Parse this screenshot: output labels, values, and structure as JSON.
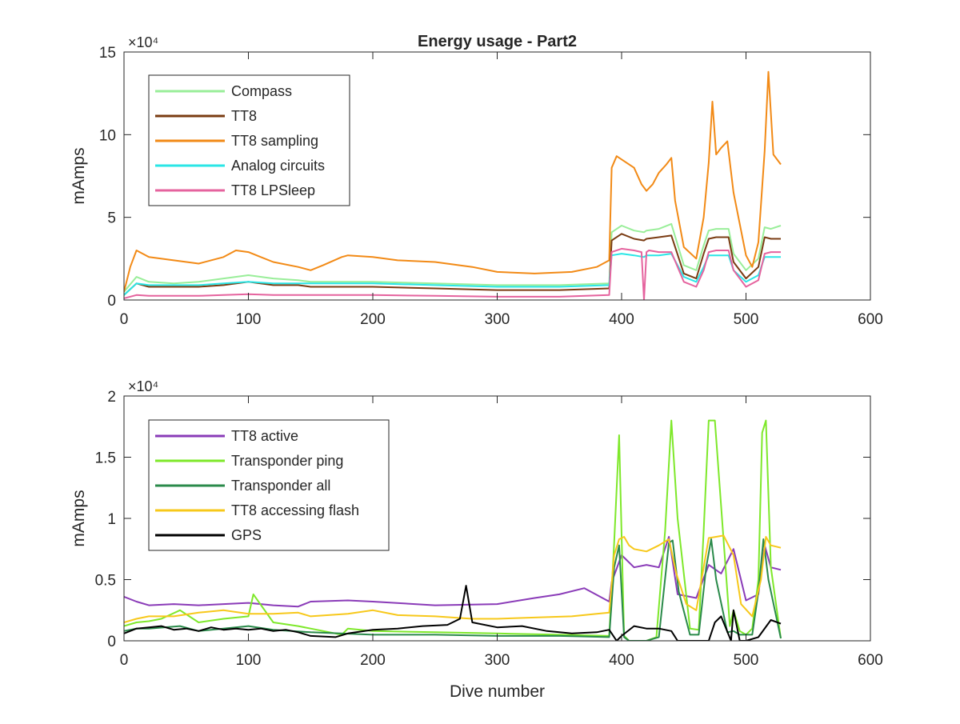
{
  "chart_data": [
    {
      "type": "line",
      "title": "Energy usage - Part2",
      "xlabel": "",
      "ylabel": "mAmps",
      "xlim": [
        0,
        600
      ],
      "ylim": [
        0,
        150000
      ],
      "xticks": [
        0,
        100,
        200,
        300,
        400,
        500,
        600
      ],
      "yticks": [
        0,
        50000,
        100000,
        150000
      ],
      "ytick_labels": [
        "0",
        "5",
        "10",
        "15"
      ],
      "y_exponent_label": "×10⁴",
      "grid": false,
      "legend_position": "top-left",
      "series": [
        {
          "name": "Compass",
          "color": "#99ee99",
          "x": [
            0,
            10,
            20,
            40,
            60,
            80,
            100,
            120,
            140,
            150,
            200,
            250,
            300,
            350,
            390,
            392,
            400,
            410,
            418,
            420,
            430,
            440,
            450,
            460,
            466,
            470,
            476,
            486,
            490,
            500,
            510,
            515,
            520,
            528
          ],
          "y": [
            5000,
            14000,
            11000,
            10000,
            11000,
            13000,
            15000,
            13000,
            12000,
            11000,
            11000,
            10000,
            9000,
            9000,
            10000,
            41000,
            45000,
            42000,
            41000,
            42000,
            43000,
            46000,
            21000,
            18000,
            33000,
            42000,
            43000,
            43000,
            28000,
            18000,
            25000,
            44000,
            43000,
            45000
          ]
        },
        {
          "name": "TT8",
          "color": "#7a3b12",
          "x": [
            0,
            10,
            20,
            40,
            60,
            80,
            100,
            120,
            140,
            150,
            200,
            250,
            300,
            350,
            390,
            392,
            400,
            410,
            418,
            420,
            430,
            440,
            450,
            460,
            466,
            470,
            476,
            486,
            490,
            500,
            510,
            515,
            520,
            528
          ],
          "y": [
            3000,
            10000,
            8000,
            8000,
            8000,
            9000,
            11000,
            9000,
            9000,
            8000,
            8000,
            7000,
            6000,
            6000,
            7000,
            36000,
            40000,
            37000,
            36000,
            37000,
            38000,
            39000,
            16000,
            13000,
            28000,
            37000,
            38000,
            38000,
            23000,
            13000,
            20000,
            38000,
            37000,
            37000
          ]
        },
        {
          "name": "TT8 sampling",
          "color": "#f28a16",
          "x": [
            0,
            5,
            10,
            20,
            40,
            60,
            80,
            90,
            100,
            110,
            120,
            140,
            150,
            160,
            175,
            180,
            200,
            220,
            250,
            280,
            300,
            330,
            360,
            380,
            390,
            392,
            396,
            400,
            410,
            416,
            420,
            425,
            430,
            436,
            440,
            443,
            450,
            460,
            466,
            470,
            473,
            476,
            480,
            485,
            490,
            500,
            505,
            510,
            515,
            518,
            522,
            528
          ],
          "y": [
            5000,
            20000,
            30000,
            26000,
            24000,
            22000,
            26000,
            30000,
            29000,
            26000,
            23000,
            20000,
            18000,
            21000,
            26000,
            27000,
            26000,
            24000,
            23000,
            20000,
            17000,
            16000,
            17000,
            20000,
            24000,
            80000,
            87000,
            85000,
            80000,
            70000,
            66000,
            70000,
            77000,
            82000,
            86000,
            60000,
            32000,
            25000,
            50000,
            83000,
            120000,
            88000,
            92000,
            96000,
            65000,
            27000,
            20000,
            35000,
            90000,
            138000,
            88000,
            82000
          ]
        },
        {
          "name": "Analog circuits",
          "color": "#2ae6e6",
          "x": [
            0,
            10,
            20,
            40,
            60,
            80,
            100,
            120,
            140,
            150,
            200,
            250,
            300,
            350,
            390,
            392,
            400,
            410,
            418,
            420,
            430,
            440,
            450,
            460,
            466,
            470,
            476,
            486,
            490,
            500,
            510,
            515,
            520,
            528
          ],
          "y": [
            3000,
            10000,
            9000,
            9000,
            9000,
            10000,
            11000,
            10000,
            10000,
            10000,
            10000,
            9000,
            8000,
            8000,
            9000,
            27000,
            28000,
            27000,
            26000,
            27000,
            27000,
            28000,
            14000,
            11000,
            20000,
            27000,
            27000,
            27000,
            18000,
            11000,
            15000,
            26000,
            26000,
            26000
          ]
        },
        {
          "name": "TT8 LPSleep",
          "color": "#e5639e",
          "x": [
            0,
            10,
            20,
            40,
            60,
            80,
            100,
            120,
            140,
            150,
            200,
            250,
            300,
            350,
            390,
            392,
            400,
            410,
            416,
            418,
            420,
            422,
            430,
            440,
            450,
            460,
            466,
            470,
            476,
            486,
            490,
            500,
            510,
            515,
            520,
            528
          ],
          "y": [
            1000,
            3000,
            2500,
            2500,
            2500,
            3000,
            3500,
            3000,
            3000,
            3000,
            3000,
            2500,
            2000,
            2000,
            3000,
            29000,
            31000,
            30000,
            29000,
            0,
            29000,
            30000,
            29000,
            29000,
            11000,
            8000,
            18000,
            29000,
            30000,
            30000,
            18000,
            8000,
            12000,
            28000,
            29000,
            29000
          ]
        }
      ]
    },
    {
      "type": "line",
      "title": "",
      "xlabel": "Dive number",
      "ylabel": "mAmps",
      "xlim": [
        0,
        600
      ],
      "ylim": [
        0,
        20000
      ],
      "xticks": [
        0,
        100,
        200,
        300,
        400,
        500,
        600
      ],
      "yticks": [
        0,
        5000,
        10000,
        15000,
        20000
      ],
      "ytick_labels": [
        "0",
        "0.5",
        "1",
        "1.5",
        "2"
      ],
      "y_exponent_label": "×10⁴",
      "grid": false,
      "legend_position": "top-left",
      "series": [
        {
          "name": "TT8 active",
          "color": "#8a3bb8",
          "x": [
            0,
            10,
            20,
            40,
            60,
            80,
            100,
            120,
            140,
            150,
            180,
            200,
            250,
            300,
            330,
            350,
            370,
            390,
            392,
            400,
            410,
            420,
            430,
            438,
            445,
            460,
            470,
            480,
            490,
            500,
            510,
            515,
            520,
            528
          ],
          "y": [
            3600,
            3200,
            2900,
            3000,
            2900,
            3000,
            3100,
            2900,
            2800,
            3200,
            3300,
            3200,
            2900,
            3000,
            3500,
            3800,
            4300,
            3200,
            4800,
            7000,
            6000,
            6200,
            6000,
            8500,
            3800,
            3500,
            6200,
            5500,
            7500,
            3300,
            3800,
            7800,
            6000,
            5800
          ]
        },
        {
          "name": "Transponder ping",
          "color": "#7ee82a",
          "x": [
            0,
            10,
            20,
            30,
            45,
            60,
            80,
            100,
            104,
            120,
            140,
            150,
            175,
            180,
            200,
            250,
            300,
            350,
            390,
            394,
            398,
            402,
            406,
            420,
            428,
            435,
            440,
            445,
            455,
            462,
            466,
            470,
            475,
            480,
            487,
            490,
            495,
            500,
            505,
            510,
            513,
            516,
            520,
            528
          ],
          "y": [
            1200,
            1500,
            1600,
            1800,
            2500,
            1500,
            1800,
            2000,
            3800,
            1500,
            1200,
            1000,
            500,
            1000,
            800,
            700,
            600,
            500,
            400,
            8000,
            16800,
            400,
            0,
            0,
            300,
            9000,
            18000,
            10000,
            1000,
            900,
            9000,
            18000,
            18000,
            11000,
            1200,
            2500,
            800,
            500,
            1000,
            5000,
            17000,
            18000,
            6000,
            200
          ]
        },
        {
          "name": "Transponder all",
          "color": "#2a8a4a",
          "x": [
            0,
            10,
            20,
            45,
            60,
            80,
            100,
            120,
            150,
            200,
            250,
            300,
            350,
            390,
            394,
            398,
            402,
            406,
            420,
            430,
            438,
            441,
            446,
            455,
            462,
            468,
            472,
            476,
            485,
            490,
            495,
            505,
            510,
            514,
            518,
            528
          ],
          "y": [
            800,
            1000,
            1000,
            1200,
            800,
            1000,
            1200,
            900,
            700,
            500,
            500,
            400,
            400,
            300,
            6000,
            7800,
            300,
            0,
            0,
            300,
            8000,
            8200,
            4000,
            500,
            500,
            6000,
            8300,
            5000,
            700,
            800,
            500,
            500,
            4000,
            8300,
            5000,
            200
          ]
        },
        {
          "name": "TT8 accessing flash",
          "color": "#f7c81a",
          "x": [
            0,
            10,
            20,
            40,
            60,
            80,
            100,
            120,
            140,
            150,
            180,
            200,
            220,
            250,
            280,
            300,
            330,
            360,
            380,
            390,
            394,
            398,
            402,
            406,
            410,
            420,
            430,
            438,
            444,
            452,
            460,
            466,
            470,
            476,
            482,
            490,
            496,
            505,
            512,
            516,
            520,
            528
          ],
          "y": [
            1500,
            1800,
            2000,
            2000,
            2300,
            2500,
            2200,
            2200,
            2300,
            2000,
            2200,
            2500,
            2100,
            2000,
            1800,
            1800,
            1900,
            2000,
            2200,
            2300,
            7000,
            8300,
            8500,
            7800,
            7500,
            7300,
            7800,
            8300,
            5500,
            3000,
            2500,
            6000,
            8400,
            8500,
            8600,
            7000,
            3000,
            2000,
            5000,
            8500,
            7800,
            7600
          ]
        },
        {
          "name": "GPS",
          "color": "#000000",
          "x": [
            0,
            10,
            20,
            30,
            40,
            50,
            60,
            70,
            80,
            90,
            100,
            110,
            120,
            130,
            140,
            150,
            170,
            180,
            200,
            220,
            240,
            260,
            270,
            275,
            280,
            300,
            320,
            340,
            360,
            380,
            390,
            396,
            400,
            410,
            420,
            430,
            440,
            445,
            450,
            460,
            470,
            475,
            480,
            488,
            490,
            495,
            500,
            510,
            520,
            528
          ],
          "y": [
            600,
            1000,
            1100,
            1200,
            900,
            1000,
            800,
            1100,
            900,
            1000,
            900,
            1000,
            800,
            900,
            700,
            400,
            300,
            600,
            900,
            1000,
            1200,
            1300,
            1800,
            4500,
            1500,
            1100,
            1200,
            800,
            600,
            700,
            900,
            0,
            400,
            1200,
            1000,
            1000,
            800,
            0,
            0,
            0,
            0,
            1500,
            2000,
            0,
            2500,
            0,
            0,
            300,
            1700,
            1400
          ]
        }
      ]
    }
  ]
}
